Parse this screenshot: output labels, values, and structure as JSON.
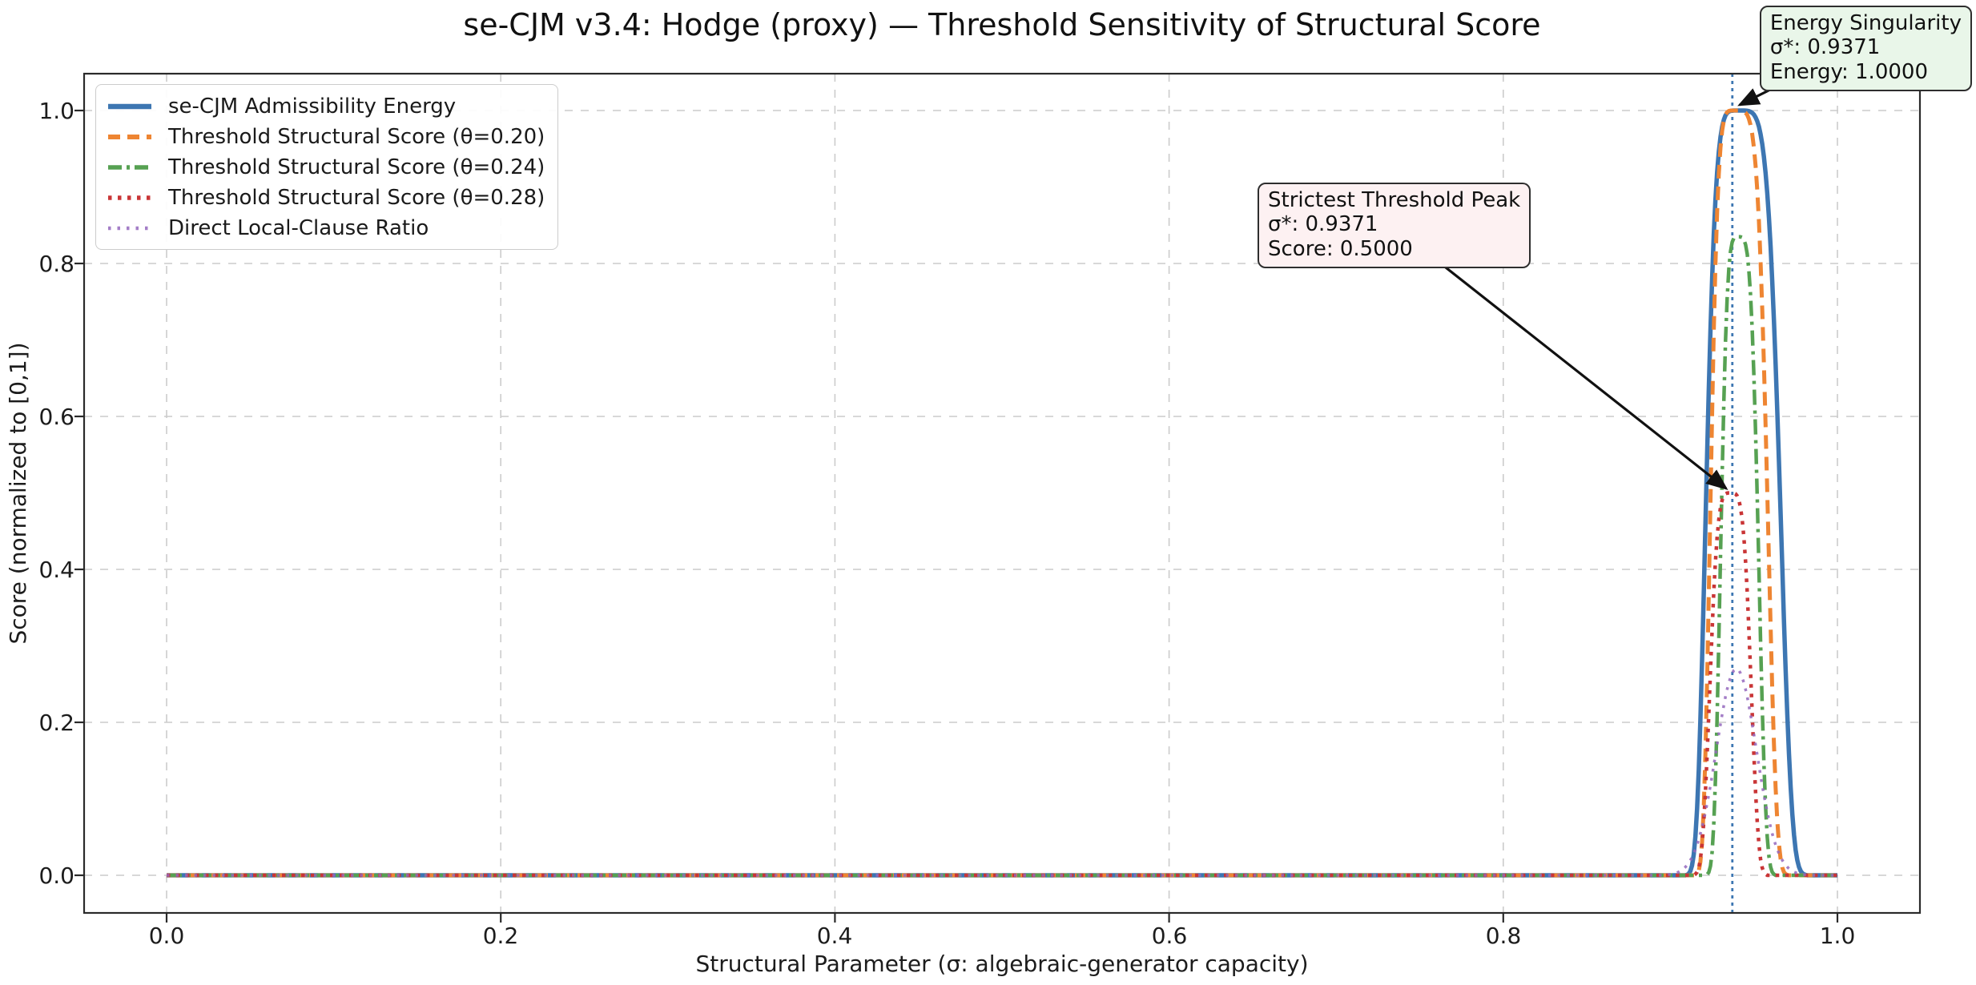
{
  "title": "se-CJM v3.4: Hodge (proxy) — Threshold Sensitivity of Structural Score",
  "axes": {
    "xlabel": "Structural Parameter (σ: algebraic-generator capacity)",
    "ylabel": "Score (normalized to [0,1])",
    "x_tick_labels": [
      "0.0",
      "0.2",
      "0.4",
      "0.6",
      "0.8",
      "1.0"
    ],
    "x_tick_values": [
      0,
      0.2,
      0.4,
      0.6,
      0.8,
      1.0
    ],
    "y_tick_labels": [
      "0.0",
      "0.2",
      "0.4",
      "0.6",
      "0.8",
      "1.0"
    ],
    "y_tick_values": [
      0,
      0.2,
      0.4,
      0.6,
      0.8,
      1.0
    ],
    "xlim": [
      -0.05,
      1.05
    ],
    "ylim": [
      -0.05,
      1.05
    ],
    "grid": true,
    "grid_color": "#cccccc",
    "frame_color": "#2a2a2a"
  },
  "chart_data": {
    "type": "line",
    "title": "se-CJM v3.4: Hodge (proxy) — Threshold Sensitivity of Structural Score",
    "xlabel": "Structural Parameter (σ: algebraic-generator capacity)",
    "ylabel": "Score (normalized to [0,1])",
    "x_range": [
      0,
      1
    ],
    "ylim": [
      0,
      1
    ],
    "grid": true,
    "legend_position": "upper left",
    "sigma_star": 0.9371,
    "baseline_value": 0.0,
    "series": [
      {
        "label": "se-CJM Admissibility Energy",
        "color": "#3d76b2",
        "style": "solid",
        "dash": null,
        "legend_dash": null,
        "lw": 5.5,
        "opacity": 1,
        "peak_value": 1.0,
        "peak_sigma": 0.9405,
        "support": [
          0.91,
          0.98
        ],
        "center": 0.9405,
        "width_left": 0.0205,
        "width_right": 0.027,
        "power": 5
      },
      {
        "label": "Threshold Structural Score (θ=0.20)",
        "color": "#ee8532",
        "style": "dashed",
        "dash": "17 10",
        "legend_dash": "15 9",
        "lw": 5,
        "opacity": 1,
        "peak_value": 1.0,
        "peak_sigma": 0.9385,
        "support": [
          0.917,
          0.968
        ],
        "center": 0.9385,
        "width_left": 0.0155,
        "width_right": 0.021,
        "power": 5
      },
      {
        "label": "Threshold Structural Score (θ=0.24)",
        "color": "#56a152",
        "style": "dashdot",
        "dash": "19 7 4 7",
        "legend_dash": "17 6 4 6",
        "lw": 4.5,
        "opacity": 1,
        "peak_value": 0.835,
        "peak_sigma": 0.9405,
        "support": [
          0.922,
          0.959
        ],
        "center": 0.9405,
        "width_left": 0.0115,
        "width_right": 0.0135,
        "power": 4
      },
      {
        "label": "Threshold Structural Score (θ=0.28)",
        "color": "#c93536",
        "style": "dotted",
        "dash": "4.5 7.5",
        "legend_dash": "4.5 7.5",
        "lw": 4.5,
        "opacity": 1,
        "peak_value": 0.5,
        "peak_sigma": 0.936,
        "support": [
          0.918,
          0.955
        ],
        "center": 0.936,
        "width_left": 0.0135,
        "width_right": 0.0135,
        "power": 4
      },
      {
        "label": "Direct Local-Clause Ratio",
        "color": "#9467bd",
        "style": "dotted",
        "dash": "3.5 8",
        "legend_dash": "3.5 8",
        "lw": 3.5,
        "opacity": 0.85,
        "peak_value": 0.27,
        "peak_sigma": 0.9395,
        "support": [
          0.907,
          0.972
        ],
        "center": 0.9395,
        "width_left": 0.017,
        "width_right": 0.017,
        "power": 2
      }
    ],
    "vline": {
      "x": 0.9371,
      "color": "#3d76b2",
      "style": "dotted"
    },
    "annotations": [
      {
        "name": "energy-singularity",
        "title": "Energy Singularity",
        "line_sigma": "σ*: 0.9371",
        "line_value": "Energy: 1.0000",
        "target": {
          "x": 0.9371,
          "y": 1.0
        },
        "bg": "#e9f6e9"
      },
      {
        "name": "strictest-threshold-peak",
        "title": "Strictest Threshold Peak",
        "line_sigma": "σ*: 0.9371",
        "line_value": "Score: 0.5000",
        "target": {
          "x": 0.9371,
          "y": 0.5
        },
        "bg": "#fdf1f2"
      }
    ]
  }
}
